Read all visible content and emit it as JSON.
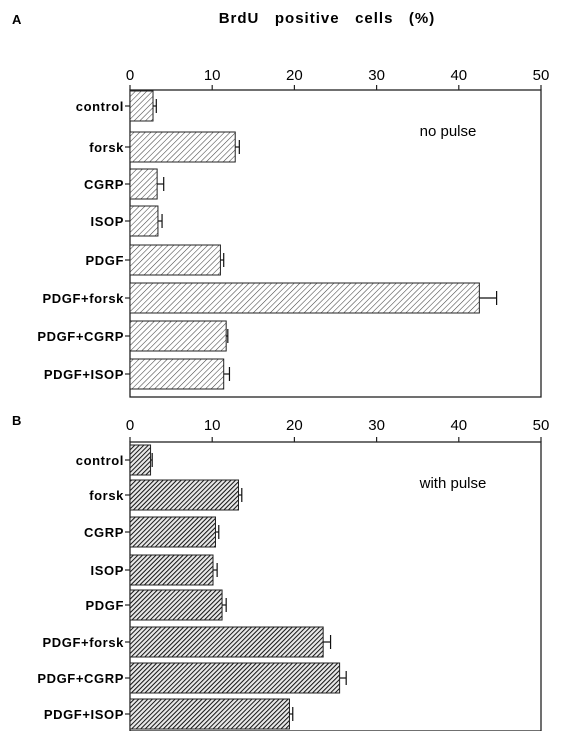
{
  "figure_title": "BrdU   positive   cells   (%)",
  "chart_data": [
    {
      "type": "bar",
      "orientation": "horizontal",
      "panel": "A",
      "annotation": "no pulse",
      "xlabel": "BrdU   positive   cells   (%)",
      "xlim": [
        0,
        50
      ],
      "xticks": [
        0,
        10,
        20,
        30,
        40,
        50
      ],
      "categories": [
        "control",
        "forsk",
        "CGRP",
        "ISOP",
        "PDGF",
        "PDGF+forsk",
        "PDGF+CGRP",
        "PDGF+ISOP"
      ],
      "values": [
        2.8,
        12.8,
        3.3,
        3.4,
        11.0,
        42.5,
        11.7,
        11.4
      ],
      "errors": [
        0.4,
        0.5,
        0.8,
        0.5,
        0.4,
        2.1,
        0.2,
        0.7
      ],
      "fill": "light diagonal hatch",
      "grid": false
    },
    {
      "type": "bar",
      "orientation": "horizontal",
      "panel": "B",
      "annotation": "with pulse",
      "xlim": [
        0,
        50
      ],
      "xticks": [
        0,
        10,
        20,
        30,
        40,
        50
      ],
      "categories": [
        "control",
        "forsk",
        "CGRP",
        "ISOP",
        "PDGF",
        "PDGF+forsk",
        "PDGF+CGRP",
        "PDGF+ISOP"
      ],
      "values": [
        2.5,
        13.2,
        10.4,
        10.1,
        11.2,
        23.5,
        25.5,
        19.4
      ],
      "errors": [
        0.2,
        0.4,
        0.4,
        0.5,
        0.5,
        0.9,
        0.8,
        0.4
      ],
      "fill": "dense dark diagonal hatch",
      "grid": false
    }
  ]
}
